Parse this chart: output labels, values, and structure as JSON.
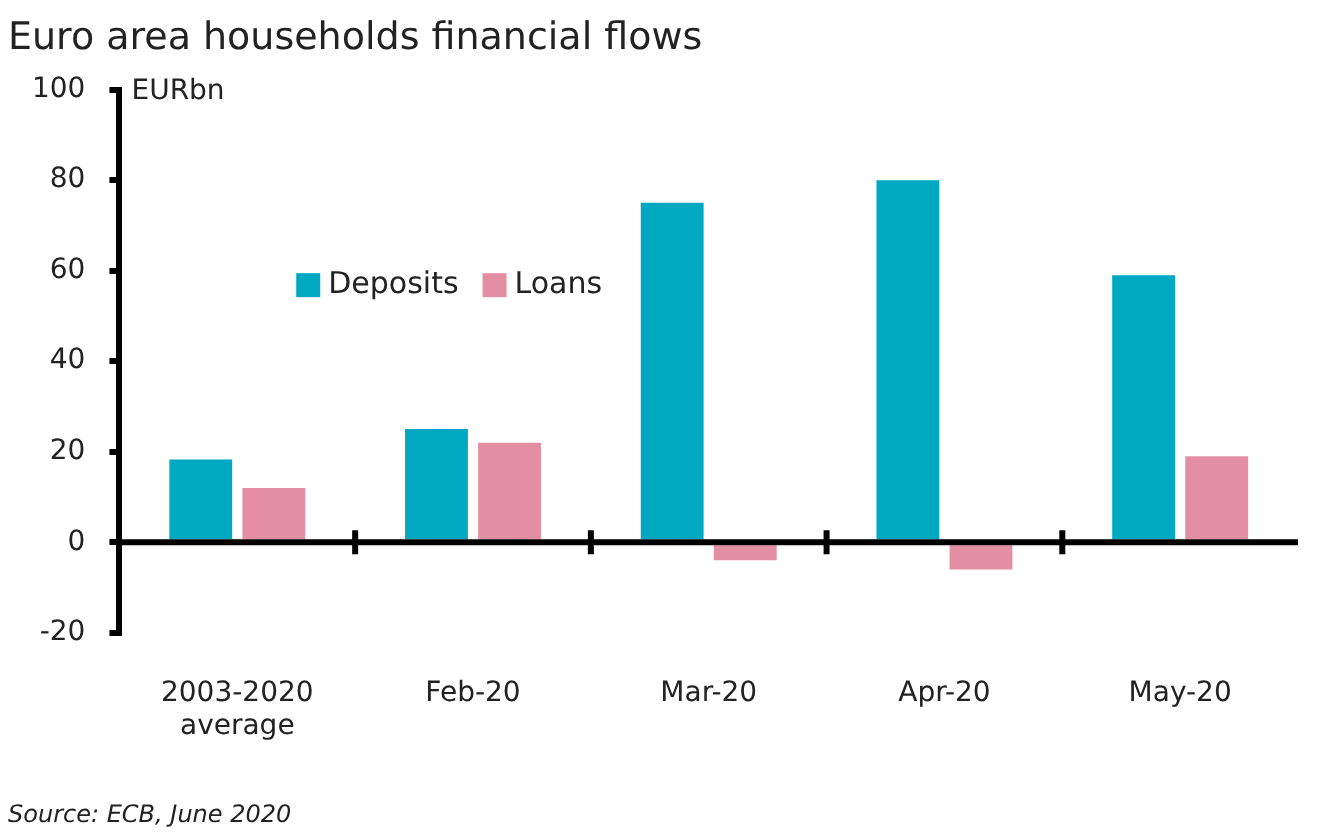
{
  "chart_data": {
    "type": "bar",
    "title": "Euro area households financial flows",
    "ylabel": "EURbn",
    "categories": [
      "2003-2020 average",
      "Feb-20",
      "Mar-20",
      "Apr-20",
      "May-20"
    ],
    "series": [
      {
        "name": "Deposits",
        "color": "#00a9c1",
        "values": [
          18.3,
          25,
          75,
          80,
          59
        ]
      },
      {
        "name": "Loans",
        "color": "#e48ea4",
        "values": [
          12,
          22,
          -4,
          -6,
          19
        ]
      }
    ],
    "ylim": [
      -20,
      100
    ],
    "yticks": [
      -20,
      0,
      20,
      40,
      60,
      80,
      100
    ],
    "grid": false,
    "ref_lines": [
      {
        "axis": "y",
        "value": 0,
        "color": "#000000"
      }
    ],
    "legend": "top left",
    "annotations": [
      "Source: ECB, June 2020"
    ]
  }
}
